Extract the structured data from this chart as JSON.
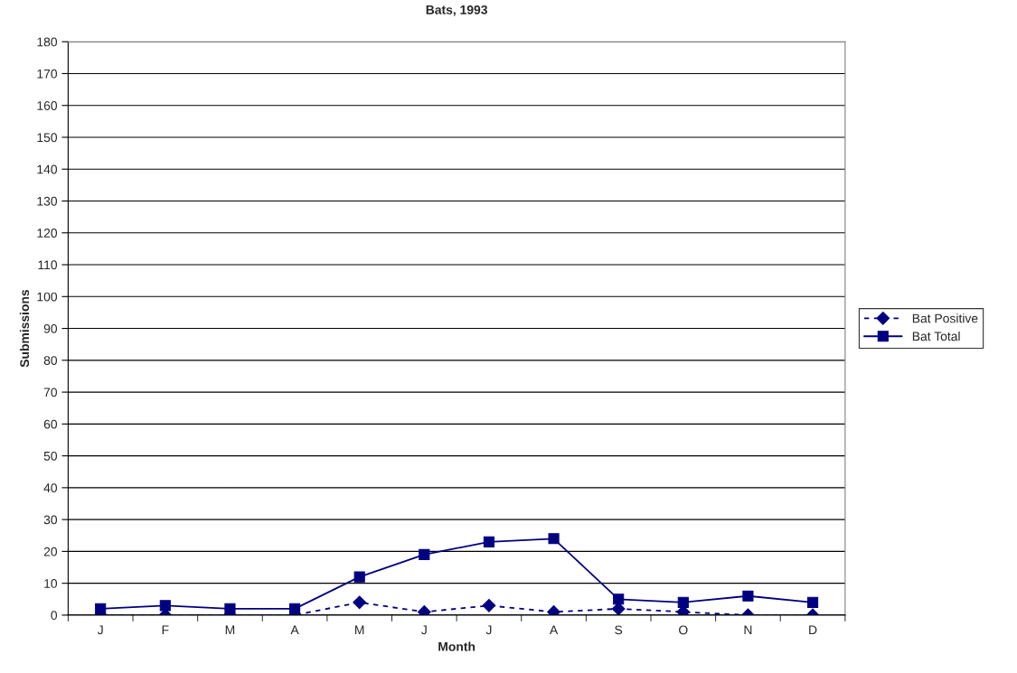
{
  "chart_data": {
    "type": "line",
    "title": "Bats, 1993",
    "xlabel": "Month",
    "ylabel": "Submissions",
    "categories": [
      "J",
      "F",
      "M",
      "A",
      "M",
      "J",
      "J",
      "A",
      "S",
      "O",
      "N",
      "D"
    ],
    "series": [
      {
        "name": "Bat Positive",
        "color": "#000080",
        "marker": "diamond",
        "line_style": "dashed",
        "values": [
          0,
          0,
          0,
          0,
          4,
          1,
          3,
          1,
          2,
          1,
          0,
          0
        ]
      },
      {
        "name": "Bat Total",
        "color": "#000080",
        "marker": "square",
        "line_style": "solid",
        "values": [
          2,
          3,
          2,
          2,
          12,
          19,
          23,
          24,
          5,
          4,
          6,
          4
        ]
      }
    ],
    "ylim": [
      0,
      180
    ],
    "yticks": [
      0,
      10,
      20,
      30,
      40,
      50,
      60,
      70,
      80,
      90,
      100,
      110,
      120,
      130,
      140,
      150,
      160,
      170,
      180
    ],
    "grid": "y",
    "legend": "right"
  }
}
